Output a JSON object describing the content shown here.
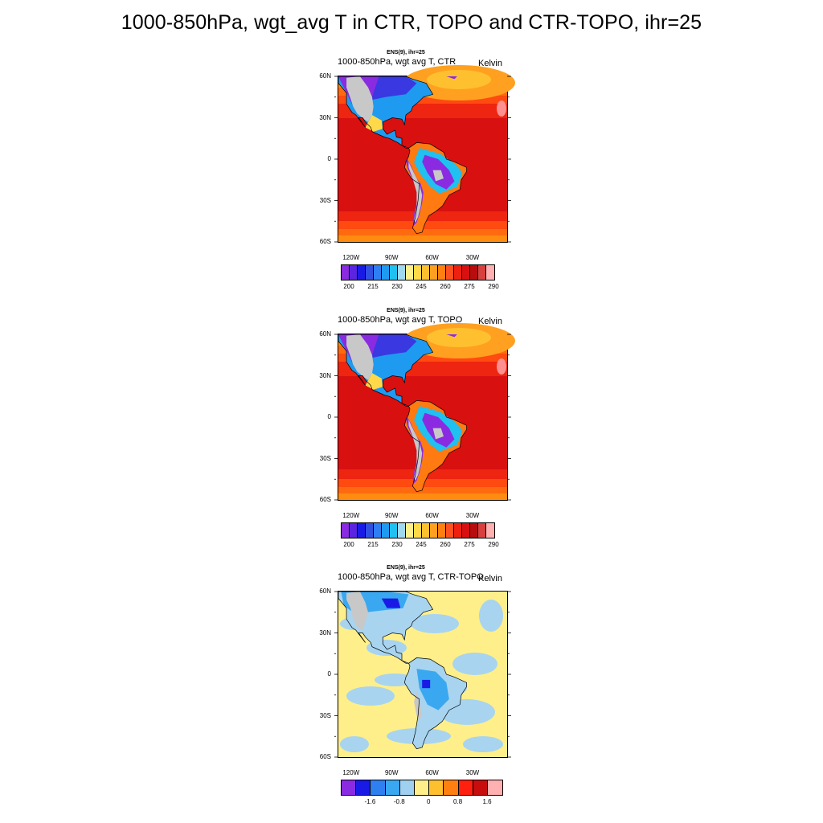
{
  "figure_title": "1000-850hPa, wgt_avg T in CTR, TOPO and CTR-TOPO, ihr=25",
  "panels": [
    {
      "ens_label": "ENS(9), ihr=25",
      "title": "1000-850hPa, wgt avg T, CTR",
      "units": "Kelvin",
      "lat_ticks": [
        "60N",
        "30N",
        "0",
        "30S",
        "60S"
      ],
      "lon_ticks": [
        "120W",
        "90W",
        "60W",
        "30W"
      ],
      "colorbar": {
        "colors": [
          "#8a2be2",
          "#5a24e0",
          "#1a1ae6",
          "#3050e0",
          "#2f7ff0",
          "#1e9bf0",
          "#20c0f0",
          "#a0d8f0",
          "#ffef8a",
          "#ffd94a",
          "#ffc030",
          "#ffa020",
          "#ff8010",
          "#ff5020",
          "#ee2010",
          "#d81010",
          "#b80d0d",
          "#d84040",
          "#ffb0b0"
        ],
        "labels": [
          "200",
          "215",
          "230",
          "245",
          "260",
          "275",
          "290"
        ]
      },
      "map_style": "full"
    },
    {
      "ens_label": "ENS(9), ihr=25",
      "title": "1000-850hPa, wgt avg T, TOPO",
      "units": "Kelvin",
      "lat_ticks": [
        "60N",
        "30N",
        "0",
        "30S",
        "60S"
      ],
      "lon_ticks": [
        "120W",
        "90W",
        "60W",
        "30W"
      ],
      "colorbar": {
        "colors": [
          "#8a2be2",
          "#5a24e0",
          "#1a1ae6",
          "#3050e0",
          "#2f7ff0",
          "#1e9bf0",
          "#20c0f0",
          "#a0d8f0",
          "#ffef8a",
          "#ffd94a",
          "#ffc030",
          "#ffa020",
          "#ff8010",
          "#ff5020",
          "#ee2010",
          "#d81010",
          "#b80d0d",
          "#d84040",
          "#ffb0b0"
        ],
        "labels": [
          "200",
          "215",
          "230",
          "245",
          "260",
          "275",
          "290"
        ]
      },
      "map_style": "full"
    },
    {
      "ens_label": "ENS(9), ihr=25",
      "title": "1000-850hPa, wgt avg T, CTR-TOPO",
      "units": "Kelvin",
      "lat_ticks": [
        "60N",
        "30N",
        "0",
        "30S",
        "60S"
      ],
      "lon_ticks": [
        "120W",
        "90W",
        "60W",
        "30W"
      ],
      "colorbar": {
        "colors": [
          "#8a2be2",
          "#1a1ae6",
          "#2f7ff0",
          "#3aa8f0",
          "#a0d0f0",
          "#ffef8a",
          "#ffc030",
          "#ff8010",
          "#ff2010",
          "#c80d0d",
          "#ffb0b0"
        ],
        "labels": [
          "-1.6",
          "-0.8",
          "0",
          "0.8",
          "1.6"
        ]
      },
      "map_style": "diff"
    }
  ]
}
